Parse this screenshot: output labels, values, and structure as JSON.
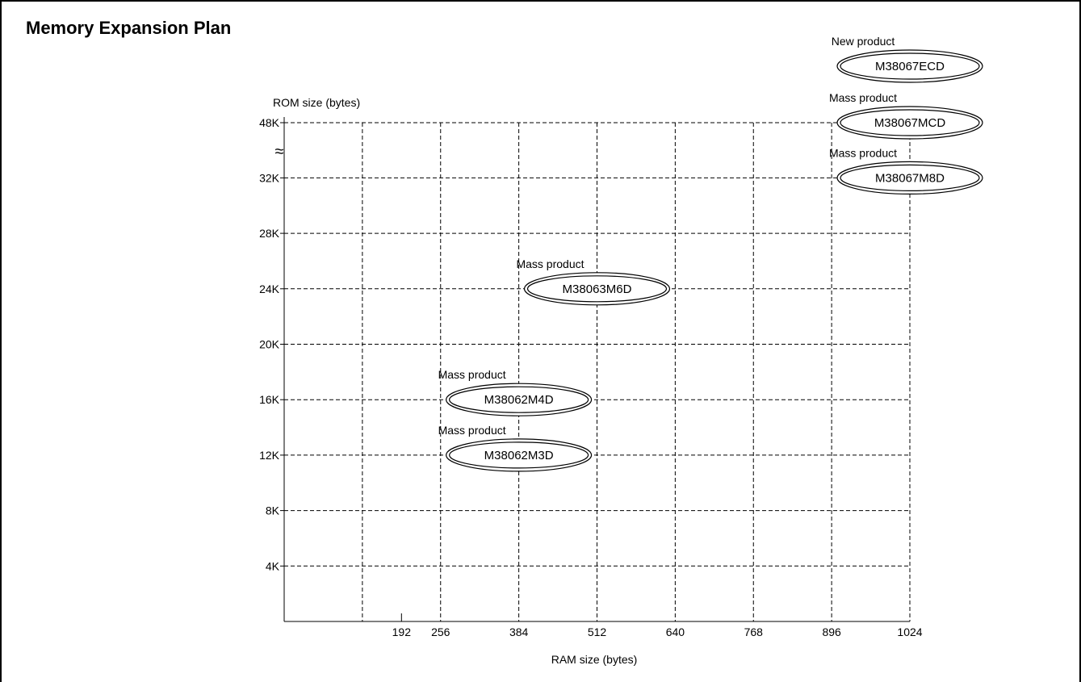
{
  "page": {
    "title": "Memory Expansion Plan"
  },
  "chart_data": {
    "type": "scatter",
    "title": "Memory Expansion Plan",
    "xlabel": "RAM size (bytes)",
    "ylabel": "ROM size (bytes)",
    "xlim": [
      0,
      1024
    ],
    "x_ticks": [
      192,
      256,
      384,
      512,
      640,
      768,
      896,
      1024
    ],
    "x_gridlines": [
      128,
      256,
      384,
      512,
      640,
      768,
      896,
      1024
    ],
    "y_ticks": [
      {
        "label": "4K",
        "value": 4
      },
      {
        "label": "8K",
        "value": 8
      },
      {
        "label": "12K",
        "value": 12
      },
      {
        "label": "16K",
        "value": 16
      },
      {
        "label": "20K",
        "value": 20
      },
      {
        "label": "24K",
        "value": 24
      },
      {
        "label": "28K",
        "value": 28
      },
      {
        "label": "32K",
        "value": 32
      },
      {
        "label": "48K",
        "value": 48
      }
    ],
    "y_axis_break": "≈",
    "grid": true,
    "grid_style": "dashed",
    "products": [
      {
        "name": "M38067ECD",
        "status": "New product",
        "ram": 1024,
        "rom": 48
      },
      {
        "name": "M38067MCD",
        "status": "Mass product",
        "ram": 1024,
        "rom": 48
      },
      {
        "name": "M38067M8D",
        "status": "Mass product",
        "ram": 1024,
        "rom": 32
      },
      {
        "name": "M38063M6D",
        "status": "Mass product",
        "ram": 512,
        "rom": 24
      },
      {
        "name": "M38062M4D",
        "status": "Mass product",
        "ram": 384,
        "rom": 16
      },
      {
        "name": "M38062M3D",
        "status": "Mass product",
        "ram": 384,
        "rom": 12
      }
    ]
  }
}
